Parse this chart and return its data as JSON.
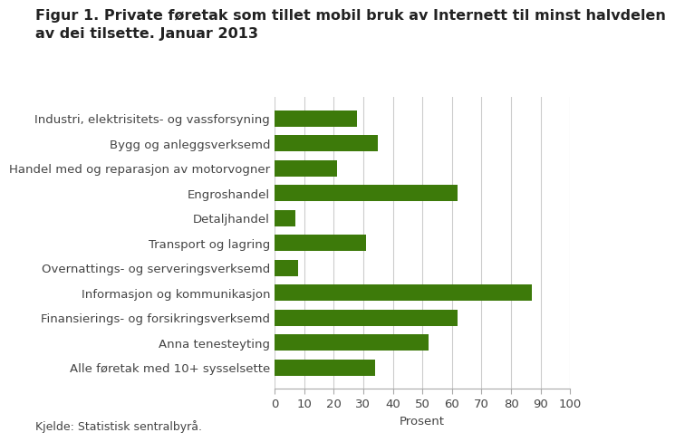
{
  "title_line1": "Figur 1. Private føretak som tillet mobil bruk av Internett til minst halvdelen",
  "title_line2": "av dei tilsette. Januar 2013",
  "categories": [
    "Industri, elektrisitets- og vassforsyning",
    "Bygg og anleggsverksemd",
    "Handel med og reparasjon av motorvogner",
    "Engroshandel",
    "Detaljhandel",
    "Transport og lagring",
    "Overnattings- og serveringsverksemd",
    "Informasjon og kommunikasjon",
    "Finansierings- og forsikringsverksemd",
    "Anna tenesteyting",
    "Alle føretak med 10+ sysselsette"
  ],
  "values": [
    28,
    35,
    21,
    62,
    7,
    31,
    8,
    87,
    62,
    52,
    34
  ],
  "bar_color": "#3d7a0a",
  "xlabel": "Prosent",
  "xlim": [
    0,
    100
  ],
  "xticks": [
    0,
    10,
    20,
    30,
    40,
    50,
    60,
    70,
    80,
    90,
    100
  ],
  "source": "Kjelde: Statistisk sentralbyrå.",
  "background_color": "#ffffff",
  "grid_color": "#cccccc",
  "title_fontsize": 11.5,
  "label_fontsize": 9.5,
  "tick_fontsize": 9.5,
  "source_fontsize": 9
}
